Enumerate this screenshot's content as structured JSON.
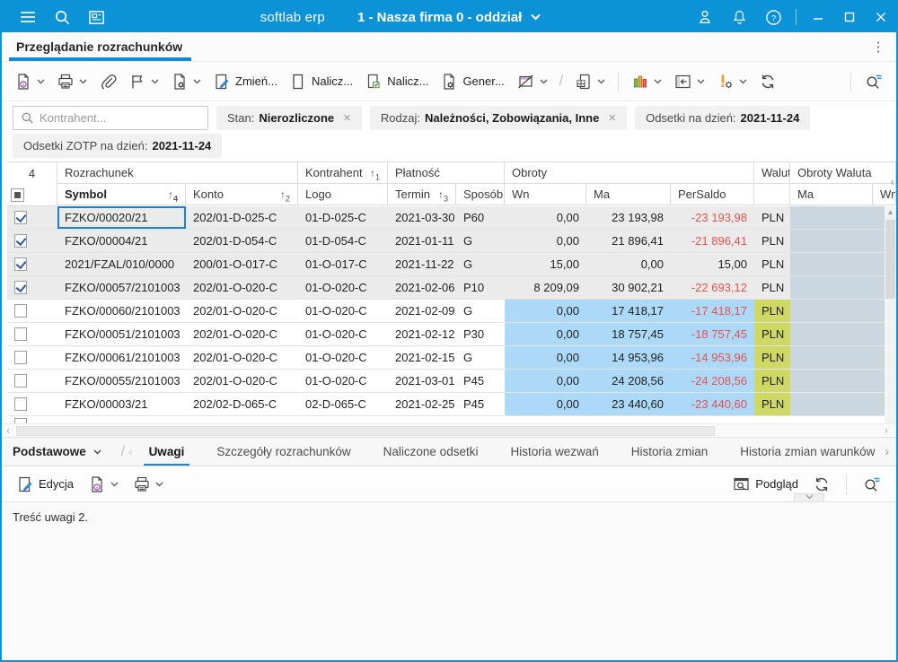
{
  "titlebar": {
    "app_name": "softlab erp",
    "company_selector": "1 - Nasza firma 0 - oddział"
  },
  "tabstrip": {
    "active_tab": "Przeglądanie rozrachunków"
  },
  "toolbar": {
    "buttons": {
      "zmien": "Zmień...",
      "nalicz_1": "Nalicz...",
      "nalicz_2": "Nalicz...",
      "generuj": "Gener..."
    }
  },
  "filters": {
    "search_placeholder": "Kontrahent...",
    "chips": [
      {
        "label": "Stan:",
        "value": "Nierozliczone",
        "closable": true,
        "row": 1
      },
      {
        "label": "Rodzaj:",
        "value": "Należności, Zobowiązania, Inne",
        "closable": true,
        "row": 1
      },
      {
        "label": "Odsetki na dzień:",
        "value": "2021-11-24",
        "closable": false,
        "row": 1
      },
      {
        "label": "Odsetki ZOTP na dzień:",
        "value": "2021-11-24",
        "closable": false,
        "row": 2
      }
    ]
  },
  "table": {
    "selected_count": "4",
    "groups": [
      {
        "label": "Rozrachunek"
      },
      {
        "label": "Kontrahent",
        "sort": "1"
      },
      {
        "label": "Płatność"
      },
      {
        "label": "Obroty"
      },
      {
        "label": "Waluta"
      },
      {
        "label": "Obroty Waluta"
      }
    ],
    "columns": [
      {
        "label": "Symbol",
        "sort": "4"
      },
      {
        "label": "Konto",
        "sort": "2"
      },
      {
        "label": "Logo"
      },
      {
        "label": "Termin",
        "sort": "3"
      },
      {
        "label": "Sposób"
      },
      {
        "label": "Wn"
      },
      {
        "label": "Ma"
      },
      {
        "label": "PerSaldo"
      },
      {
        "label": ""
      },
      {
        "label": "Ma"
      },
      {
        "label": "Wn"
      }
    ],
    "rows": [
      {
        "checked": true,
        "focused": true,
        "symbol": "FZKO/00020/21",
        "konto": "202/01-D-025-C",
        "logo": "01-D-025-C",
        "termin": "2021-03-30",
        "sposob": "P60",
        "wn": "0,00",
        "ma": "23 193,98",
        "persaldo": "-23 193,98",
        "waluta": "PLN"
      },
      {
        "checked": true,
        "symbol": "FZKO/00004/21",
        "konto": "202/01-D-054-C",
        "logo": "01-D-054-C",
        "termin": "2021-01-11",
        "sposob": "G",
        "wn": "0,00",
        "ma": "21 896,41",
        "persaldo": "-21 896,41",
        "waluta": "PLN"
      },
      {
        "checked": true,
        "symbol": "2021/FZAL/010/0000",
        "konto": "200/01-O-017-C",
        "logo": "01-O-017-C",
        "termin": "2021-11-22",
        "sposob": "G",
        "wn": "15,00",
        "ma": "0,00",
        "persaldo": "15,00",
        "waluta": "PLN"
      },
      {
        "checked": true,
        "symbol": "FZKO/00057/2101003",
        "konto": "202/01-O-020-C",
        "logo": "01-O-020-C",
        "termin": "2021-02-06",
        "sposob": "P10",
        "wn": "8 209,09",
        "ma": "30 902,21",
        "persaldo": "-22 693,12",
        "waluta": "PLN"
      },
      {
        "checked": false,
        "symbol": "FZKO/00060/2101003",
        "konto": "202/01-O-020-C",
        "logo": "01-O-020-C",
        "termin": "2021-02-09",
        "sposob": "G",
        "wn": "0,00",
        "ma": "17 418,17",
        "persaldo": "-17 418,17",
        "waluta": "PLN"
      },
      {
        "checked": false,
        "symbol": "FZKO/00051/2101003",
        "konto": "202/01-O-020-C",
        "logo": "01-O-020-C",
        "termin": "2021-02-12",
        "sposob": "P30",
        "wn": "0,00",
        "ma": "18 757,45",
        "persaldo": "-18 757,45",
        "waluta": "PLN"
      },
      {
        "checked": false,
        "symbol": "FZKO/00061/2101003",
        "konto": "202/01-O-020-C",
        "logo": "01-O-020-C",
        "termin": "2021-02-15",
        "sposob": "G",
        "wn": "0,00",
        "ma": "14 953,96",
        "persaldo": "-14 953,96",
        "waluta": "PLN"
      },
      {
        "checked": false,
        "symbol": "FZKO/00055/2101003",
        "konto": "202/01-O-020-C",
        "logo": "01-O-020-C",
        "termin": "2021-03-01",
        "sposob": "P45",
        "wn": "0,00",
        "ma": "24 208,56",
        "persaldo": "-24 208,56",
        "waluta": "PLN"
      },
      {
        "checked": false,
        "symbol": "FZKO/00003/21",
        "konto": "202/02-D-065-C",
        "logo": "02-D-065-C",
        "termin": "2021-02-25",
        "sposob": "P45",
        "wn": "0,00",
        "ma": "23 440,60",
        "persaldo": "-23 440,60",
        "waluta": "PLN"
      }
    ]
  },
  "bottom_panel": {
    "scope_selector": "Podstawowe",
    "tabs": [
      "Uwagi",
      "Szczegóły rozrachunków",
      "Naliczone odsetki",
      "Historia wezwań",
      "Historia zmian",
      "Historia zmian warunków"
    ],
    "active_tab": "Uwagi",
    "toolbar": {
      "edit_label": "Edycja",
      "preview_label": "Podgląd"
    },
    "note_text": "Treść uwagi 2."
  },
  "icons": [
    "hamburger-icon",
    "search-icon",
    "news-icon",
    "chevron-down-icon",
    "user-icon",
    "bell-icon",
    "help-icon",
    "minimize-icon",
    "maximize-icon",
    "close-icon",
    "more-vertical-icon",
    "document-info-icon",
    "printer-icon",
    "paperclip-icon",
    "flag-icon",
    "document-gear-icon",
    "document-edit-icon",
    "blank-document-icon",
    "document-check-icon",
    "envelope-slash-icon",
    "document-table-icon",
    "bar-chart-icon",
    "panel-left-icon",
    "warning-gear-icon",
    "refresh-icon",
    "search-filter-icon",
    "checkbox-icon",
    "sort-arrow-icon",
    "window-preview-icon",
    "collapse-chevron-icon"
  ],
  "colors": {
    "titlebar_blue": "#0c92d6",
    "accent_blue": "#1389d6",
    "negative_red": "#e8514d",
    "cell_blue": "#abd9f7",
    "cell_yellow": "#cdd964",
    "cell_gray_blue": "#ccd6de",
    "row_selected_gray": "#ebebeb"
  }
}
